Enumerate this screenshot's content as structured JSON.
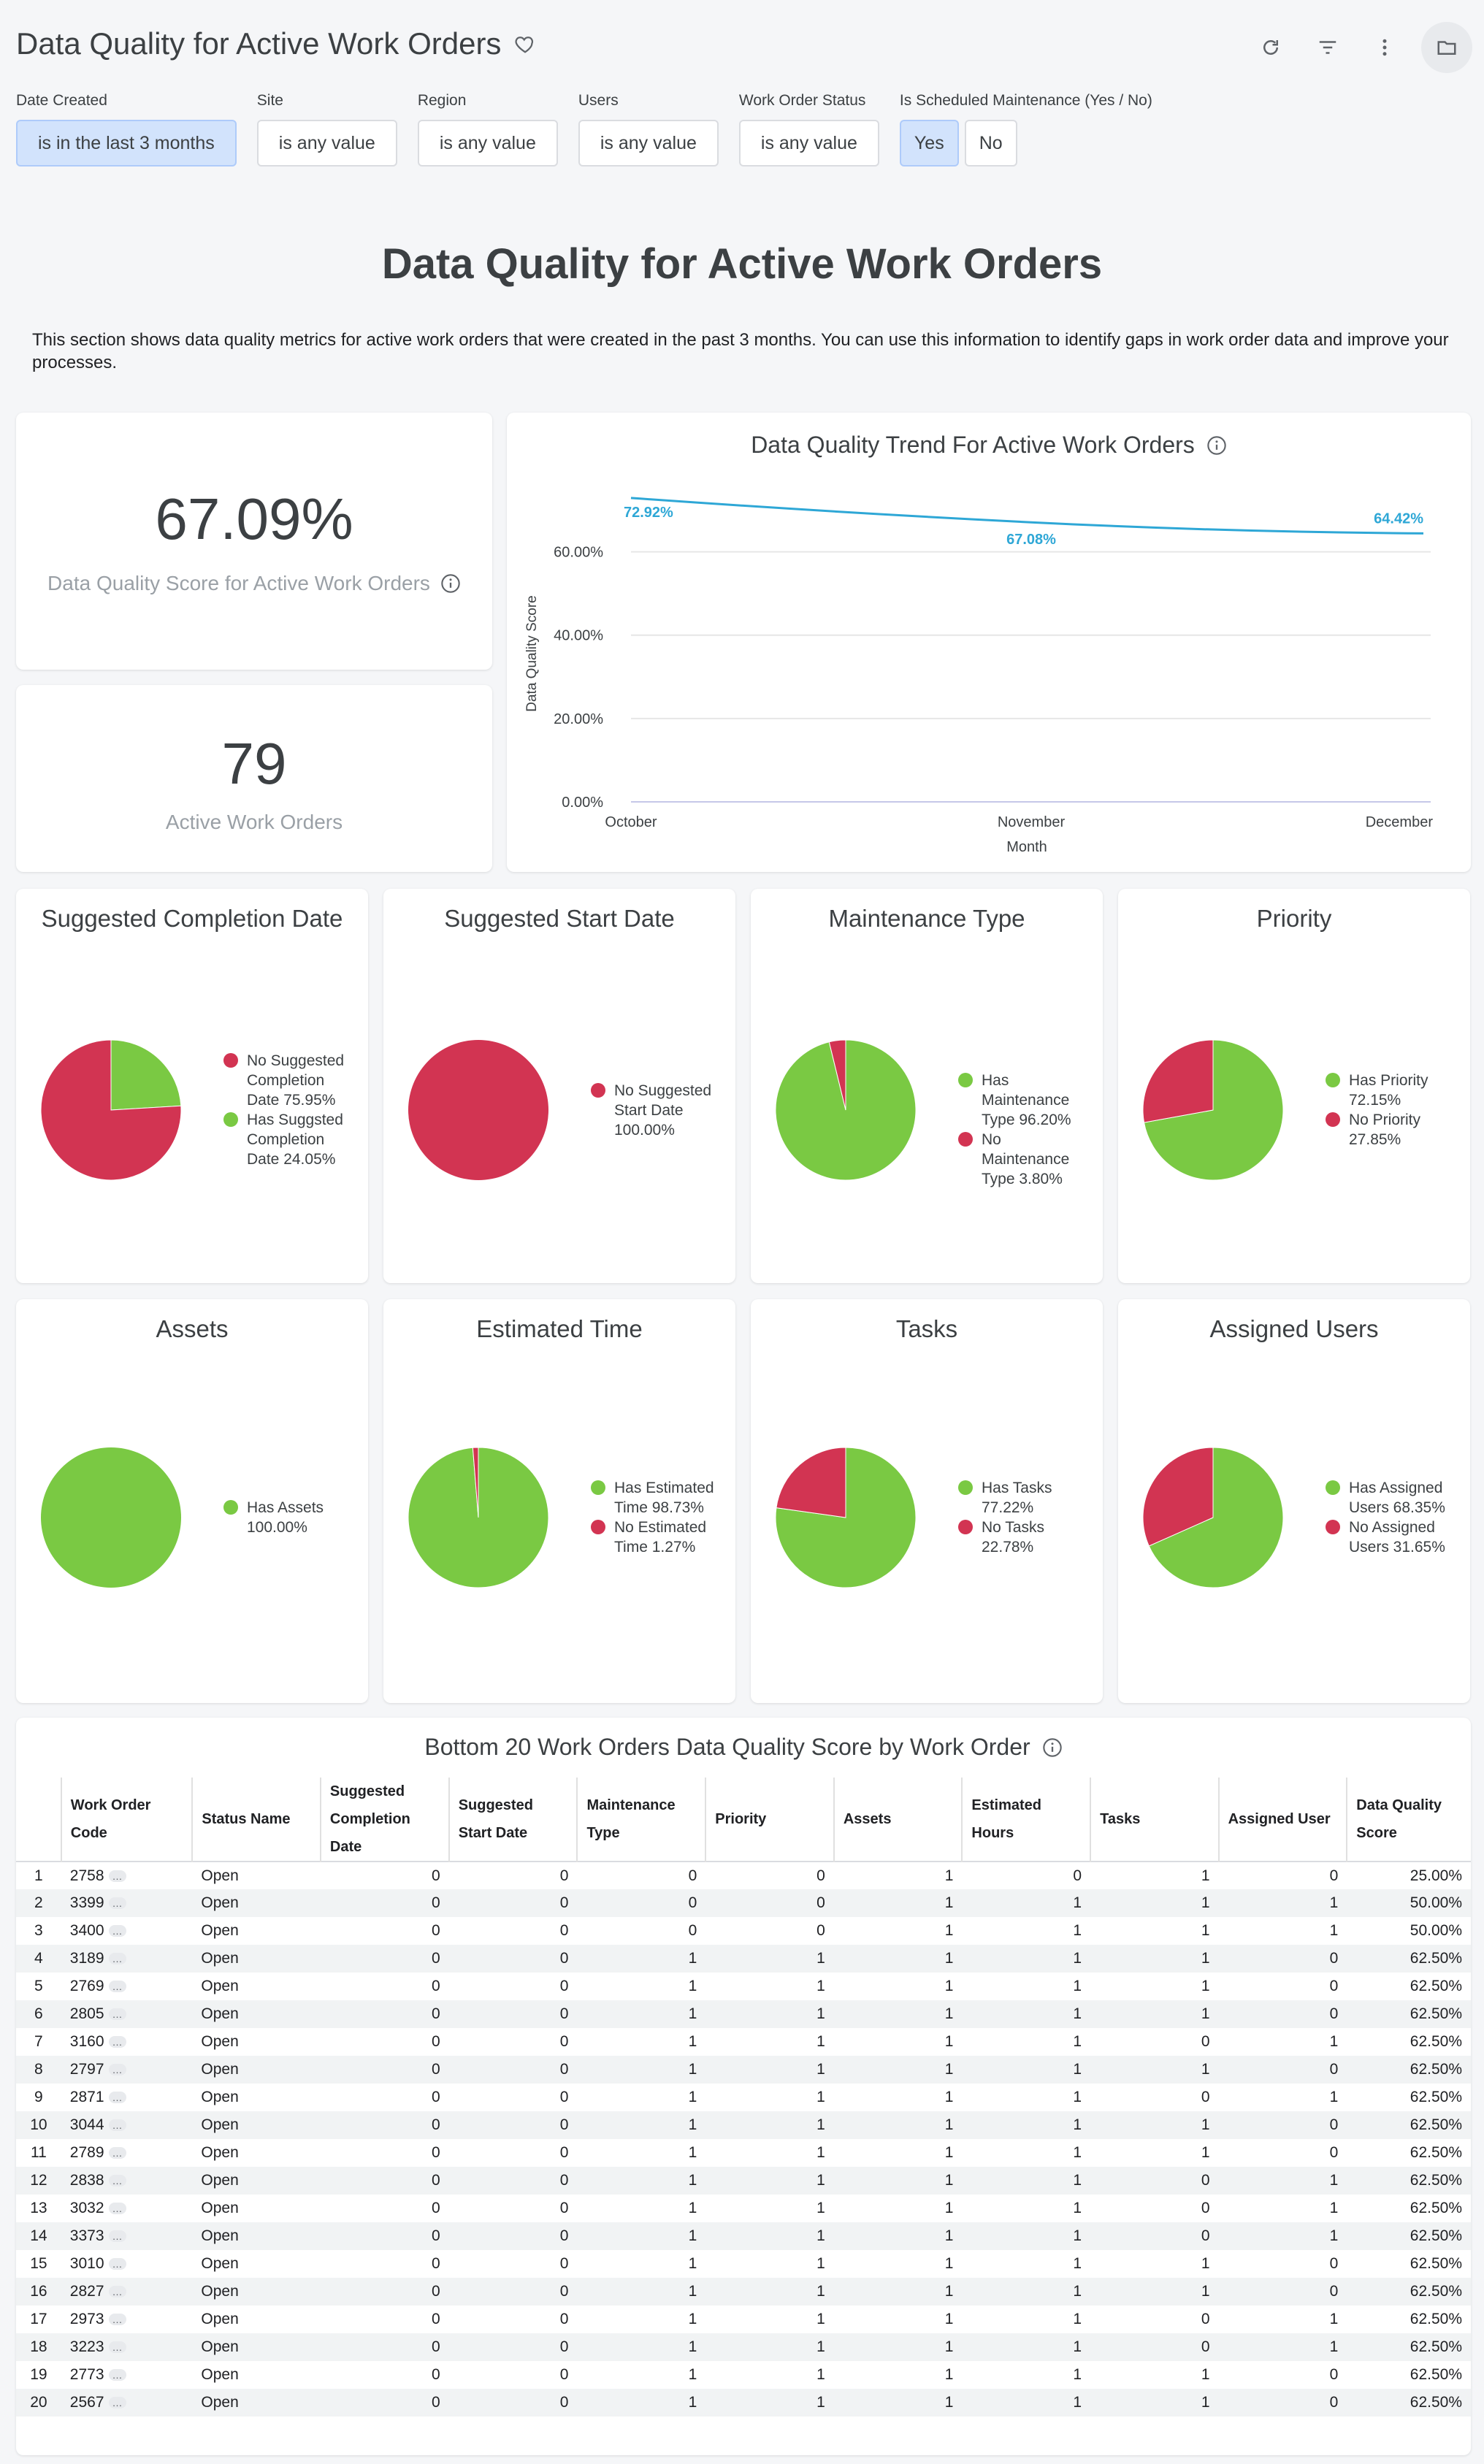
{
  "header": {
    "title": "Data Quality for Active Work Orders"
  },
  "filters": [
    {
      "label": "Date Created",
      "value": "is in the last 3 months",
      "active": true
    },
    {
      "label": "Site",
      "value": "is any value",
      "active": false
    },
    {
      "label": "Region",
      "value": "is any value",
      "active": false
    },
    {
      "label": "Users",
      "value": "is any value",
      "active": false
    },
    {
      "label": "Work Order Status",
      "value": "is any value",
      "active": false
    }
  ],
  "maintenance_filter": {
    "label": "Is Scheduled Maintenance (Yes / No)",
    "yes": "Yes",
    "no": "No",
    "selected": "Yes"
  },
  "section": {
    "title": "Data Quality for Active Work Orders",
    "description": "This section shows data quality metrics for active work orders that were created in the past 3 months. You can use this information to identify gaps in work order data and improve your processes."
  },
  "score_card": {
    "value": "67.09%",
    "label": "Data Quality Score for Active Work Orders"
  },
  "count_card": {
    "value": "79",
    "label": "Active Work Orders"
  },
  "colors": {
    "green": "#7ac943",
    "red": "#d23452",
    "line": "#2ea7d6"
  },
  "chart_data": [
    {
      "type": "line",
      "title": "Data Quality Trend For Active Work Orders",
      "xlabel": "Month",
      "ylabel": "Data Quality Score",
      "categories": [
        "October",
        "November",
        "December"
      ],
      "values": [
        72.92,
        67.08,
        64.42
      ],
      "data_labels": [
        "72.92%",
        "67.08%",
        "64.42%"
      ],
      "yticks": [
        "0.00%",
        "20.00%",
        "40.00%",
        "60.00%"
      ],
      "ylim": [
        0,
        75
      ],
      "grid": true
    },
    {
      "type": "pie",
      "title": "Suggested Completion Date",
      "slices": [
        {
          "name": "No Suggested Completion Date 75.95%",
          "value": 75.95,
          "color": "red"
        },
        {
          "name": "Has Suggsted Completion Date 24.05%",
          "value": 24.05,
          "color": "green"
        }
      ]
    },
    {
      "type": "pie",
      "title": "Suggested Start Date",
      "slices": [
        {
          "name": "No Suggested Start Date 100.00%",
          "value": 100.0,
          "color": "red"
        }
      ]
    },
    {
      "type": "pie",
      "title": "Maintenance Type",
      "slices": [
        {
          "name": "Has Maintenance Type 96.20%",
          "value": 96.2,
          "color": "green"
        },
        {
          "name": "No Maintenance Type 3.80%",
          "value": 3.8,
          "color": "red"
        }
      ]
    },
    {
      "type": "pie",
      "title": "Priority",
      "slices": [
        {
          "name": "Has Priority 72.15%",
          "value": 72.15,
          "color": "green"
        },
        {
          "name": "No Priority 27.85%",
          "value": 27.85,
          "color": "red"
        }
      ]
    },
    {
      "type": "pie",
      "title": "Assets",
      "slices": [
        {
          "name": "Has Assets 100.00%",
          "value": 100.0,
          "color": "green"
        }
      ]
    },
    {
      "type": "pie",
      "title": "Estimated Time",
      "slices": [
        {
          "name": "Has Estimated Time 98.73%",
          "value": 98.73,
          "color": "green"
        },
        {
          "name": "No Estimated Time 1.27%",
          "value": 1.27,
          "color": "red"
        }
      ]
    },
    {
      "type": "pie",
      "title": "Tasks",
      "slices": [
        {
          "name": "Has Tasks 77.22%",
          "value": 77.22,
          "color": "green"
        },
        {
          "name": "No Tasks 22.78%",
          "value": 22.78,
          "color": "red"
        }
      ]
    },
    {
      "type": "pie",
      "title": "Assigned Users",
      "slices": [
        {
          "name": "Has Assigned Users 68.35%",
          "value": 68.35,
          "color": "green"
        },
        {
          "name": "No Assigned Users 31.65%",
          "value": 31.65,
          "color": "red"
        }
      ]
    }
  ],
  "table": {
    "title": "Bottom 20 Work Orders Data Quality Score by Work Order",
    "columns": [
      "Work Order Code",
      "Status Name",
      "Suggested Completion Date",
      "Suggested Start Date",
      "Maintenance Type",
      "Priority",
      "Assets",
      "Estimated Hours",
      "Tasks",
      "Assigned User",
      "Data Quality Score"
    ],
    "rows": [
      [
        "1",
        "2758",
        "Open",
        "0",
        "0",
        "0",
        "0",
        "1",
        "0",
        "1",
        "0",
        "25.00%"
      ],
      [
        "2",
        "3399",
        "Open",
        "0",
        "0",
        "0",
        "0",
        "1",
        "1",
        "1",
        "1",
        "50.00%"
      ],
      [
        "3",
        "3400",
        "Open",
        "0",
        "0",
        "0",
        "0",
        "1",
        "1",
        "1",
        "1",
        "50.00%"
      ],
      [
        "4",
        "3189",
        "Open",
        "0",
        "0",
        "1",
        "1",
        "1",
        "1",
        "1",
        "0",
        "62.50%"
      ],
      [
        "5",
        "2769",
        "Open",
        "0",
        "0",
        "1",
        "1",
        "1",
        "1",
        "1",
        "0",
        "62.50%"
      ],
      [
        "6",
        "2805",
        "Open",
        "0",
        "0",
        "1",
        "1",
        "1",
        "1",
        "1",
        "0",
        "62.50%"
      ],
      [
        "7",
        "3160",
        "Open",
        "0",
        "0",
        "1",
        "1",
        "1",
        "1",
        "0",
        "1",
        "62.50%"
      ],
      [
        "8",
        "2797",
        "Open",
        "0",
        "0",
        "1",
        "1",
        "1",
        "1",
        "1",
        "0",
        "62.50%"
      ],
      [
        "9",
        "2871",
        "Open",
        "0",
        "0",
        "1",
        "1",
        "1",
        "1",
        "0",
        "1",
        "62.50%"
      ],
      [
        "10",
        "3044",
        "Open",
        "0",
        "0",
        "1",
        "1",
        "1",
        "1",
        "1",
        "0",
        "62.50%"
      ],
      [
        "11",
        "2789",
        "Open",
        "0",
        "0",
        "1",
        "1",
        "1",
        "1",
        "1",
        "0",
        "62.50%"
      ],
      [
        "12",
        "2838",
        "Open",
        "0",
        "0",
        "1",
        "1",
        "1",
        "1",
        "0",
        "1",
        "62.50%"
      ],
      [
        "13",
        "3032",
        "Open",
        "0",
        "0",
        "1",
        "1",
        "1",
        "1",
        "0",
        "1",
        "62.50%"
      ],
      [
        "14",
        "3373",
        "Open",
        "0",
        "0",
        "1",
        "1",
        "1",
        "1",
        "0",
        "1",
        "62.50%"
      ],
      [
        "15",
        "3010",
        "Open",
        "0",
        "0",
        "1",
        "1",
        "1",
        "1",
        "1",
        "0",
        "62.50%"
      ],
      [
        "16",
        "2827",
        "Open",
        "0",
        "0",
        "1",
        "1",
        "1",
        "1",
        "1",
        "0",
        "62.50%"
      ],
      [
        "17",
        "2973",
        "Open",
        "0",
        "0",
        "1",
        "1",
        "1",
        "1",
        "0",
        "1",
        "62.50%"
      ],
      [
        "18",
        "3223",
        "Open",
        "0",
        "0",
        "1",
        "1",
        "1",
        "1",
        "0",
        "1",
        "62.50%"
      ],
      [
        "19",
        "2773",
        "Open",
        "0",
        "0",
        "1",
        "1",
        "1",
        "1",
        "1",
        "0",
        "62.50%"
      ],
      [
        "20",
        "2567",
        "Open",
        "0",
        "0",
        "1",
        "1",
        "1",
        "1",
        "1",
        "0",
        "62.50%"
      ]
    ]
  }
}
